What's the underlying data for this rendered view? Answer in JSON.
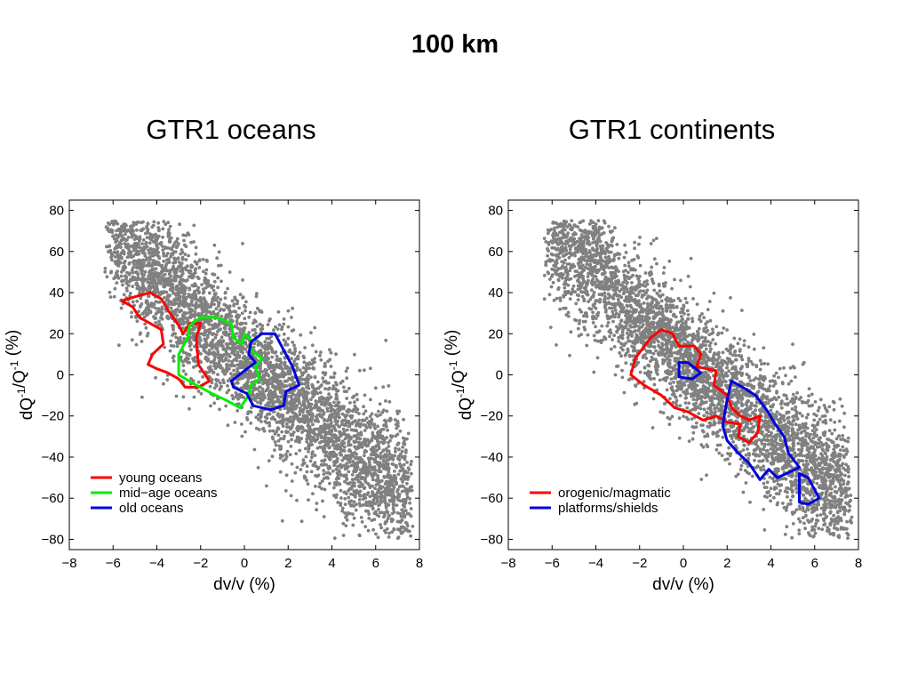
{
  "main_title": "100 km",
  "chart_data": [
    {
      "type": "scatter",
      "title": "GTR1 oceans",
      "xlabel": "dv/v (%)",
      "ylabel": "dQ-1/Q-1 (%)",
      "xlim": [
        -8,
        8
      ],
      "ylim": [
        -85,
        85
      ],
      "xticks": [
        -8,
        -6,
        -4,
        -2,
        0,
        2,
        4,
        6,
        8
      ],
      "yticks": [
        80,
        60,
        40,
        20,
        0,
        -20,
        -40,
        -60,
        -80
      ],
      "tick_labels_x": [
        "−8",
        "−6",
        "−4",
        "−2",
        "0",
        "2",
        "4",
        "6",
        "8"
      ],
      "tick_labels_y": [
        "80",
        "60",
        "40",
        "20",
        "0",
        "−20",
        "−40",
        "−60",
        "−80"
      ],
      "grid": false,
      "legend_position": "bottom-left",
      "scatter_color": "#808080",
      "scatter_description": "dense cloud of grey points following a negative trend from about (-6, 55) to (7, -70)",
      "contours": [
        {
          "name": "young oceans",
          "color": "#ff0000",
          "points": [
            [
              -5.6,
              36
            ],
            [
              -5,
              38
            ],
            [
              -4.3,
              40
            ],
            [
              -3.8,
              37
            ],
            [
              -3.4,
              30
            ],
            [
              -3,
              24
            ],
            [
              -2.8,
              20
            ],
            [
              -2.5,
              25
            ],
            [
              -2,
              25
            ],
            [
              -2.2,
              18
            ],
            [
              -2.1,
              5
            ],
            [
              -1.6,
              -3
            ],
            [
              -2.1,
              -6
            ],
            [
              -2.7,
              -6
            ],
            [
              -3,
              -2
            ],
            [
              -3.5,
              1
            ],
            [
              -4,
              3
            ],
            [
              -4.4,
              5
            ],
            [
              -4.2,
              10
            ],
            [
              -3.7,
              15
            ],
            [
              -3.8,
              22
            ],
            [
              -4.3,
              25
            ],
            [
              -4.8,
              28
            ],
            [
              -5.1,
              33
            ],
            [
              -5.6,
              36
            ]
          ]
        },
        {
          "name": "mid−age oceans",
          "color": "#00ee00",
          "points": [
            [
              -2.5,
              24
            ],
            [
              -2,
              28
            ],
            [
              -1.3,
              28
            ],
            [
              -0.6,
              25
            ],
            [
              -0.5,
              18
            ],
            [
              -0.1,
              15
            ],
            [
              0,
              20
            ],
            [
              0.3,
              17
            ],
            [
              0.3,
              12
            ],
            [
              0.8,
              8
            ],
            [
              0.5,
              4
            ],
            [
              0.7,
              -2
            ],
            [
              0.3,
              -5
            ],
            [
              0.2,
              -10
            ],
            [
              -0.2,
              -16
            ],
            [
              -0.9,
              -12
            ],
            [
              -1.5,
              -9
            ],
            [
              -2.2,
              -5
            ],
            [
              -3,
              0
            ],
            [
              -3,
              10
            ],
            [
              -2.6,
              18
            ],
            [
              -2.5,
              24
            ]
          ]
        },
        {
          "name": "old oceans",
          "color": "#0000dd",
          "points": [
            [
              0.3,
              16
            ],
            [
              0.8,
              20
            ],
            [
              1.4,
              20
            ],
            [
              1.8,
              12
            ],
            [
              2.2,
              4
            ],
            [
              2.5,
              -5
            ],
            [
              1.9,
              -8
            ],
            [
              1.8,
              -15
            ],
            [
              1.2,
              -17
            ],
            [
              0.4,
              -15
            ],
            [
              0.1,
              -9
            ],
            [
              -0.5,
              -6
            ],
            [
              -0.6,
              -3
            ],
            [
              0,
              2
            ],
            [
              0.5,
              6
            ],
            [
              0.2,
              10
            ],
            [
              0.3,
              16
            ]
          ]
        }
      ],
      "legend": [
        "young oceans",
        "mid−age oceans",
        "old oceans"
      ]
    },
    {
      "type": "scatter",
      "title": "GTR1 continents",
      "xlabel": "dv/v (%)",
      "ylabel": "dQ-1/Q-1 (%)",
      "xlim": [
        -8,
        8
      ],
      "ylim": [
        -85,
        85
      ],
      "xticks": [
        -8,
        -6,
        -4,
        -2,
        0,
        2,
        4,
        6,
        8
      ],
      "yticks": [
        80,
        60,
        40,
        20,
        0,
        -20,
        -40,
        -60,
        -80
      ],
      "tick_labels_x": [
        "−8",
        "−6",
        "−4",
        "−2",
        "0",
        "2",
        "4",
        "6",
        "8"
      ],
      "tick_labels_y": [
        "80",
        "60",
        "40",
        "20",
        "0",
        "−20",
        "−40",
        "−60",
        "−80"
      ],
      "grid": false,
      "legend_position": "bottom-left",
      "scatter_color": "#808080",
      "scatter_description": "dense cloud of grey points following a negative trend from about (-6, 55) to (7, -70)",
      "contours": [
        {
          "name": "orogenic/magmatic",
          "color": "#ff0000",
          "points": [
            [
              -1.5,
              18
            ],
            [
              -1,
              22
            ],
            [
              -0.5,
              20
            ],
            [
              -0.2,
              14
            ],
            [
              0.5,
              14
            ],
            [
              0.8,
              10
            ],
            [
              0.6,
              4
            ],
            [
              1.5,
              2
            ],
            [
              1.4,
              -5
            ],
            [
              2,
              -10
            ],
            [
              2.2,
              -16
            ],
            [
              2.6,
              -20
            ],
            [
              3,
              -22
            ],
            [
              3.5,
              -20
            ],
            [
              3.4,
              -28
            ],
            [
              3,
              -33
            ],
            [
              2.5,
              -30
            ],
            [
              2.6,
              -24
            ],
            [
              2,
              -23
            ],
            [
              1.5,
              -20
            ],
            [
              0.9,
              -22
            ],
            [
              0.2,
              -18
            ],
            [
              -0.4,
              -16
            ],
            [
              -1,
              -10
            ],
            [
              -1.8,
              -5
            ],
            [
              -2.4,
              0
            ],
            [
              -2.2,
              8
            ],
            [
              -1.5,
              18
            ]
          ]
        },
        {
          "name": "platforms/shields",
          "color": "#0000dd",
          "points": [
            [
              -0.2,
              6
            ],
            [
              0.2,
              6
            ],
            [
              0.8,
              1
            ],
            [
              0.4,
              -2
            ],
            [
              -0.2,
              -1
            ],
            [
              -0.2,
              6
            ]
          ]
        },
        {
          "name": "platforms/shields",
          "color": "#0000dd",
          "points": [
            [
              2.2,
              -3
            ],
            [
              2.7,
              -6
            ],
            [
              3.3,
              -10
            ],
            [
              3.8,
              -17
            ],
            [
              4.2,
              -24
            ],
            [
              4.6,
              -30
            ],
            [
              4.8,
              -38
            ],
            [
              5.3,
              -45
            ],
            [
              4.9,
              -47
            ],
            [
              4.3,
              -50
            ],
            [
              3.9,
              -46
            ],
            [
              3.5,
              -51
            ],
            [
              3,
              -43
            ],
            [
              2.5,
              -38
            ],
            [
              2,
              -32
            ],
            [
              1.8,
              -25
            ],
            [
              1.9,
              -18
            ],
            [
              2,
              -12
            ],
            [
              2.2,
              -3
            ]
          ]
        },
        {
          "name": "platforms/shields",
          "color": "#0000dd",
          "points": [
            [
              5.3,
              -48
            ],
            [
              5.7,
              -50
            ],
            [
              6.2,
              -60
            ],
            [
              5.7,
              -63
            ],
            [
              5.3,
              -62
            ],
            [
              5.3,
              -55
            ],
            [
              5.3,
              -48
            ]
          ]
        }
      ],
      "legend": [
        "orogenic/magmatic",
        "platforms/shields"
      ]
    }
  ]
}
